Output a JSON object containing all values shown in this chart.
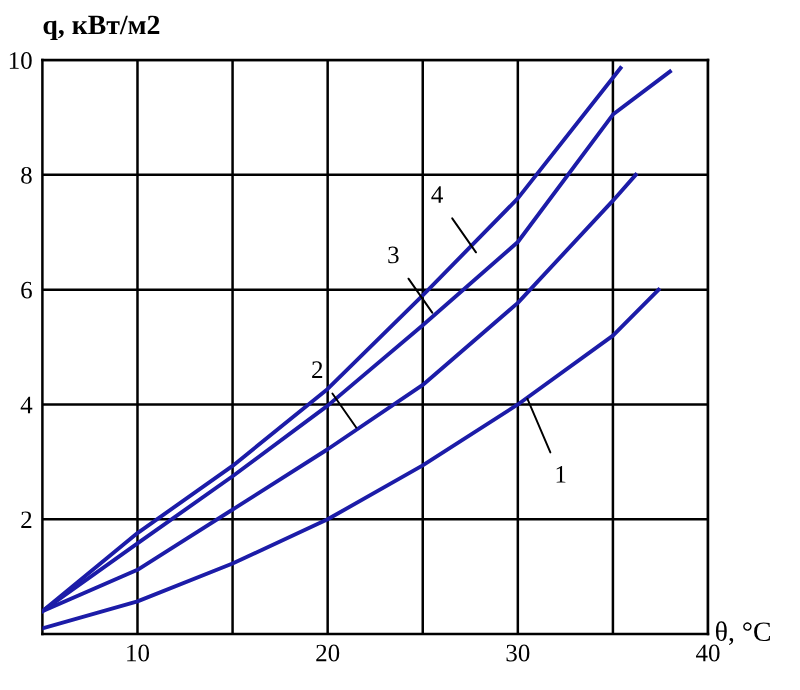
{
  "chart_data": {
    "type": "line",
    "xlabel": "θ, °C",
    "ylabel": "q, кВт/м2",
    "xlim": [
      5,
      40
    ],
    "ylim": [
      0,
      10
    ],
    "xticks": [
      10,
      {
        "value": 15,
        "label": null
      },
      20,
      {
        "value": 25,
        "label": null
      },
      30,
      {
        "value": 35,
        "label": null
      },
      40
    ],
    "yticks": [
      2,
      4,
      6,
      8,
      10
    ],
    "grid": true,
    "marker": "none",
    "line_style": "solid",
    "series": [
      {
        "color": "#1c1ca8",
        "x": [
          5,
          10,
          15,
          20,
          25,
          30,
          35,
          37.4
        ],
        "values": [
          0.1,
          0.57,
          1.23,
          2.0,
          2.94,
          4.0,
          5.2,
          6.0
        ]
      },
      {
        "color": "#1c1ca8",
        "x": [
          5,
          10,
          15,
          20,
          25,
          30,
          35,
          36.2
        ],
        "values": [
          0.4,
          1.12,
          2.17,
          3.22,
          4.34,
          5.77,
          7.55,
          8.0
        ]
      },
      {
        "color": "#1c1ca8",
        "x": [
          5,
          10,
          15,
          20,
          25,
          30,
          35,
          38.0
        ],
        "values": [
          0.4,
          1.58,
          2.75,
          3.98,
          5.38,
          6.83,
          9.05,
          9.8
        ]
      },
      {
        "color": "#1c1ca8",
        "x": [
          5,
          10,
          15,
          20,
          25,
          30,
          35,
          35.4
        ],
        "values": [
          0.4,
          1.76,
          2.93,
          4.27,
          5.9,
          7.59,
          9.69,
          9.86
        ]
      }
    ],
    "annotations": [
      {
        "text": "1",
        "x": 30.5,
        "y": 4.1
      },
      {
        "text": "2",
        "x": 21.5,
        "y": 3.6
      },
      {
        "text": "3",
        "x": 25.5,
        "y": 5.6
      },
      {
        "text": "4",
        "x": 27.8,
        "y": 6.65
      }
    ]
  }
}
